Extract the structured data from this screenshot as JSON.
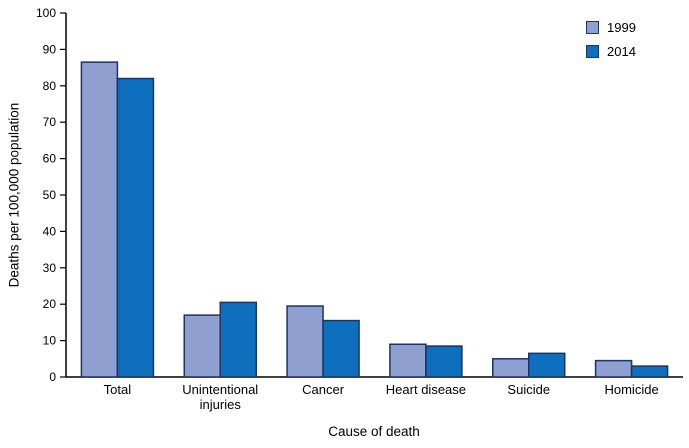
{
  "chart_data": {
    "type": "bar",
    "xlabel": "Cause of death",
    "ylabel": "Deaths per 100,000 population",
    "ylim": [
      0,
      100
    ],
    "ytick_step": 10,
    "grid": false,
    "legend_position": "top-right",
    "categories": [
      "Total",
      "Unintentional\ninjuries",
      "Cancer",
      "Heart disease",
      "Suicide",
      "Homicide"
    ],
    "series": [
      {
        "name": "1999",
        "color": "#8FA0D0",
        "values": [
          86.5,
          17,
          19.5,
          9,
          5,
          4.5
        ]
      },
      {
        "name": "2014",
        "color": "#0E6FBE",
        "values": [
          82,
          20.5,
          15.5,
          8.5,
          6.5,
          3
        ]
      }
    ],
    "bar_border_color": "#1C3461",
    "axis_color": "#000000",
    "background_color": "#FFFFFF"
  }
}
